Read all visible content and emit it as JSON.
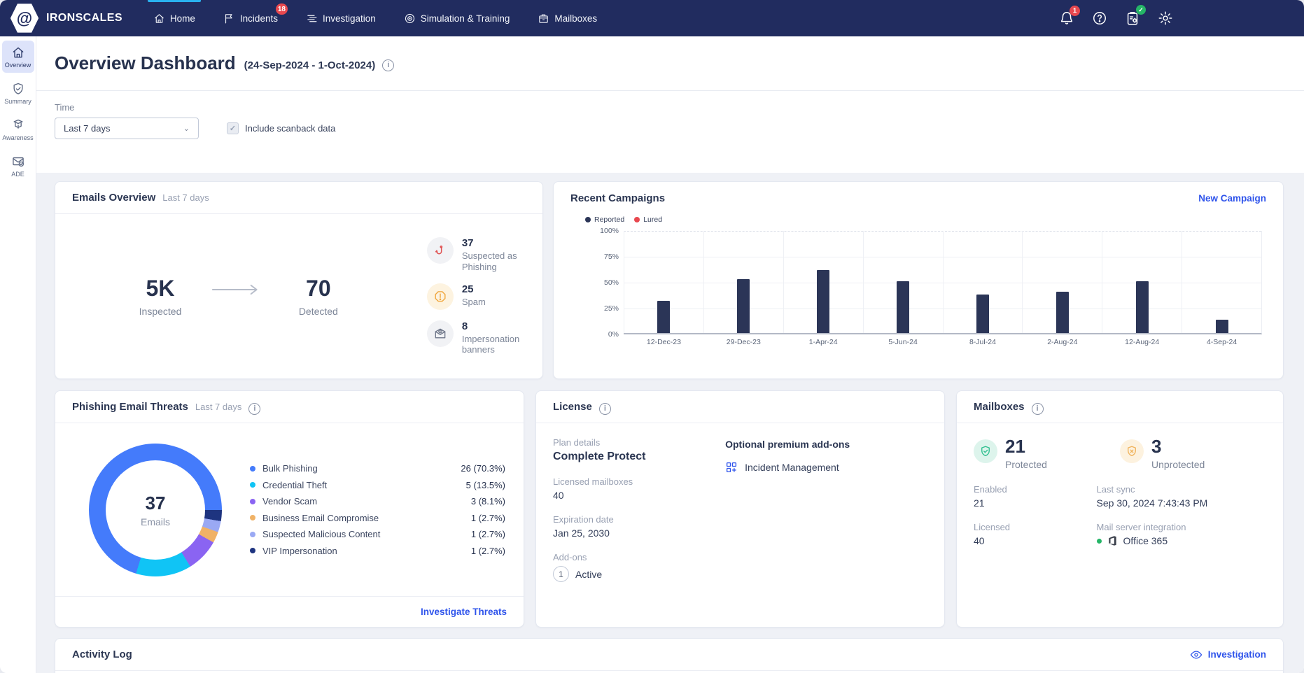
{
  "navbar": {
    "brand": "IRONSCALES",
    "logo_glyph": "@",
    "items": [
      {
        "label": "Home",
        "icon": "home-icon",
        "active": true
      },
      {
        "label": "Incidents",
        "icon": "flag-icon",
        "badge": "18"
      },
      {
        "label": "Investigation",
        "icon": "list-icon"
      },
      {
        "label": "Simulation & Training",
        "icon": "target-icon"
      },
      {
        "label": "Mailboxes",
        "icon": "mailbox-icon"
      }
    ],
    "notifications_badge": "1"
  },
  "sidebar": {
    "items": [
      {
        "label": "Overview",
        "icon": "home-icon",
        "active": true
      },
      {
        "label": "Summary",
        "icon": "shield-check-icon"
      },
      {
        "label": "Awareness",
        "icon": "awareness-icon"
      },
      {
        "label": "ADE",
        "icon": "envelope-check-icon"
      }
    ]
  },
  "header": {
    "title": "Overview Dashboard",
    "date_range": "(24-Sep-2024 - 1-Oct-2024)"
  },
  "filters": {
    "time_label": "Time",
    "time_value": "Last 7 days",
    "scanback_label": "Include scanback data",
    "scanback_checked": "✓"
  },
  "emails_overview": {
    "title": "Emails Overview",
    "period": "Last 7 days",
    "inspected_value": "5K",
    "inspected_label": "Inspected",
    "detected_value": "70",
    "detected_label": "Detected",
    "stats": [
      {
        "value": "37",
        "label": "Suspected as Phishing",
        "icon": "hook-icon",
        "style": "sc-gray"
      },
      {
        "value": "25",
        "label": "Spam",
        "icon": "alert-icon",
        "style": "sc-orange"
      },
      {
        "value": "8",
        "label": "Impersonation banners",
        "icon": "banner-icon",
        "style": "sc-dim"
      }
    ]
  },
  "recent_campaigns": {
    "title": "Recent Campaigns",
    "action": "New Campaign",
    "chart_data": {
      "type": "bar",
      "categories": [
        "12-Dec-23",
        "29-Dec-23",
        "1-Apr-24",
        "5-Jun-24",
        "8-Jul-24",
        "2-Aug-24",
        "12-Aug-24",
        "4-Sep-24"
      ],
      "series": [
        {
          "name": "Reported",
          "color": "#2b3557",
          "values": [
            31,
            52,
            61,
            50,
            37,
            40,
            50,
            13
          ]
        },
        {
          "name": "Lured",
          "color": "#e8484f",
          "values": [
            0,
            0,
            0,
            0,
            0,
            0,
            0,
            0
          ]
        }
      ],
      "unit": "%",
      "ylim": [
        0,
        100
      ],
      "yticks": [
        0,
        25,
        50,
        75,
        100
      ],
      "legend_position": "top-left",
      "grid": true
    }
  },
  "phishing_threats": {
    "title": "Phishing Email Threats",
    "period": "Last 7 days",
    "center_value": "37",
    "center_label": "Emails",
    "action": "Investigate Threats",
    "chart_data": {
      "type": "pie",
      "title": "Phishing Email Threats",
      "segments": [
        {
          "label": "Bulk Phishing",
          "value": 26,
          "pct": 70.3,
          "color": "#447bfb"
        },
        {
          "label": "Credential Theft",
          "value": 5,
          "pct": 13.5,
          "color": "#10c4f5"
        },
        {
          "label": "Vendor Scam",
          "value": 3,
          "pct": 8.1,
          "color": "#8a64f2"
        },
        {
          "label": "Business Email Compromise",
          "value": 1,
          "pct": 2.7,
          "color": "#f0b266"
        },
        {
          "label": "Suspected Malicious Content",
          "value": 1,
          "pct": 2.7,
          "color": "#9aa9f4"
        },
        {
          "label": "VIP Impersonation",
          "value": 1,
          "pct": 2.7,
          "color": "#1e3480"
        }
      ]
    }
  },
  "license": {
    "title": "License",
    "plan_label": "Plan details",
    "plan_value": "Complete Protect",
    "mailboxes_label": "Licensed mailboxes",
    "mailboxes_value": "40",
    "expiration_label": "Expiration date",
    "expiration_value": "Jan 25, 2030",
    "addons_label": "Add-ons",
    "addons_count": "1",
    "addons_status": "Active",
    "premium_title": "Optional premium add-ons",
    "premium_item": "Incident Management"
  },
  "mailboxes": {
    "title": "Mailboxes",
    "protected_value": "21",
    "protected_label": "Protected",
    "unprotected_value": "3",
    "unprotected_label": "Unprotected",
    "enabled_label": "Enabled",
    "enabled_value": "21",
    "last_sync_label": "Last sync",
    "last_sync_value": "Sep 30, 2024 7:43:43 PM",
    "licensed_label": "Licensed",
    "licensed_value": "40",
    "integration_label": "Mail server integration",
    "integration_value": "Office 365"
  },
  "activity_log": {
    "title": "Activity Log",
    "action": "Investigation"
  }
}
